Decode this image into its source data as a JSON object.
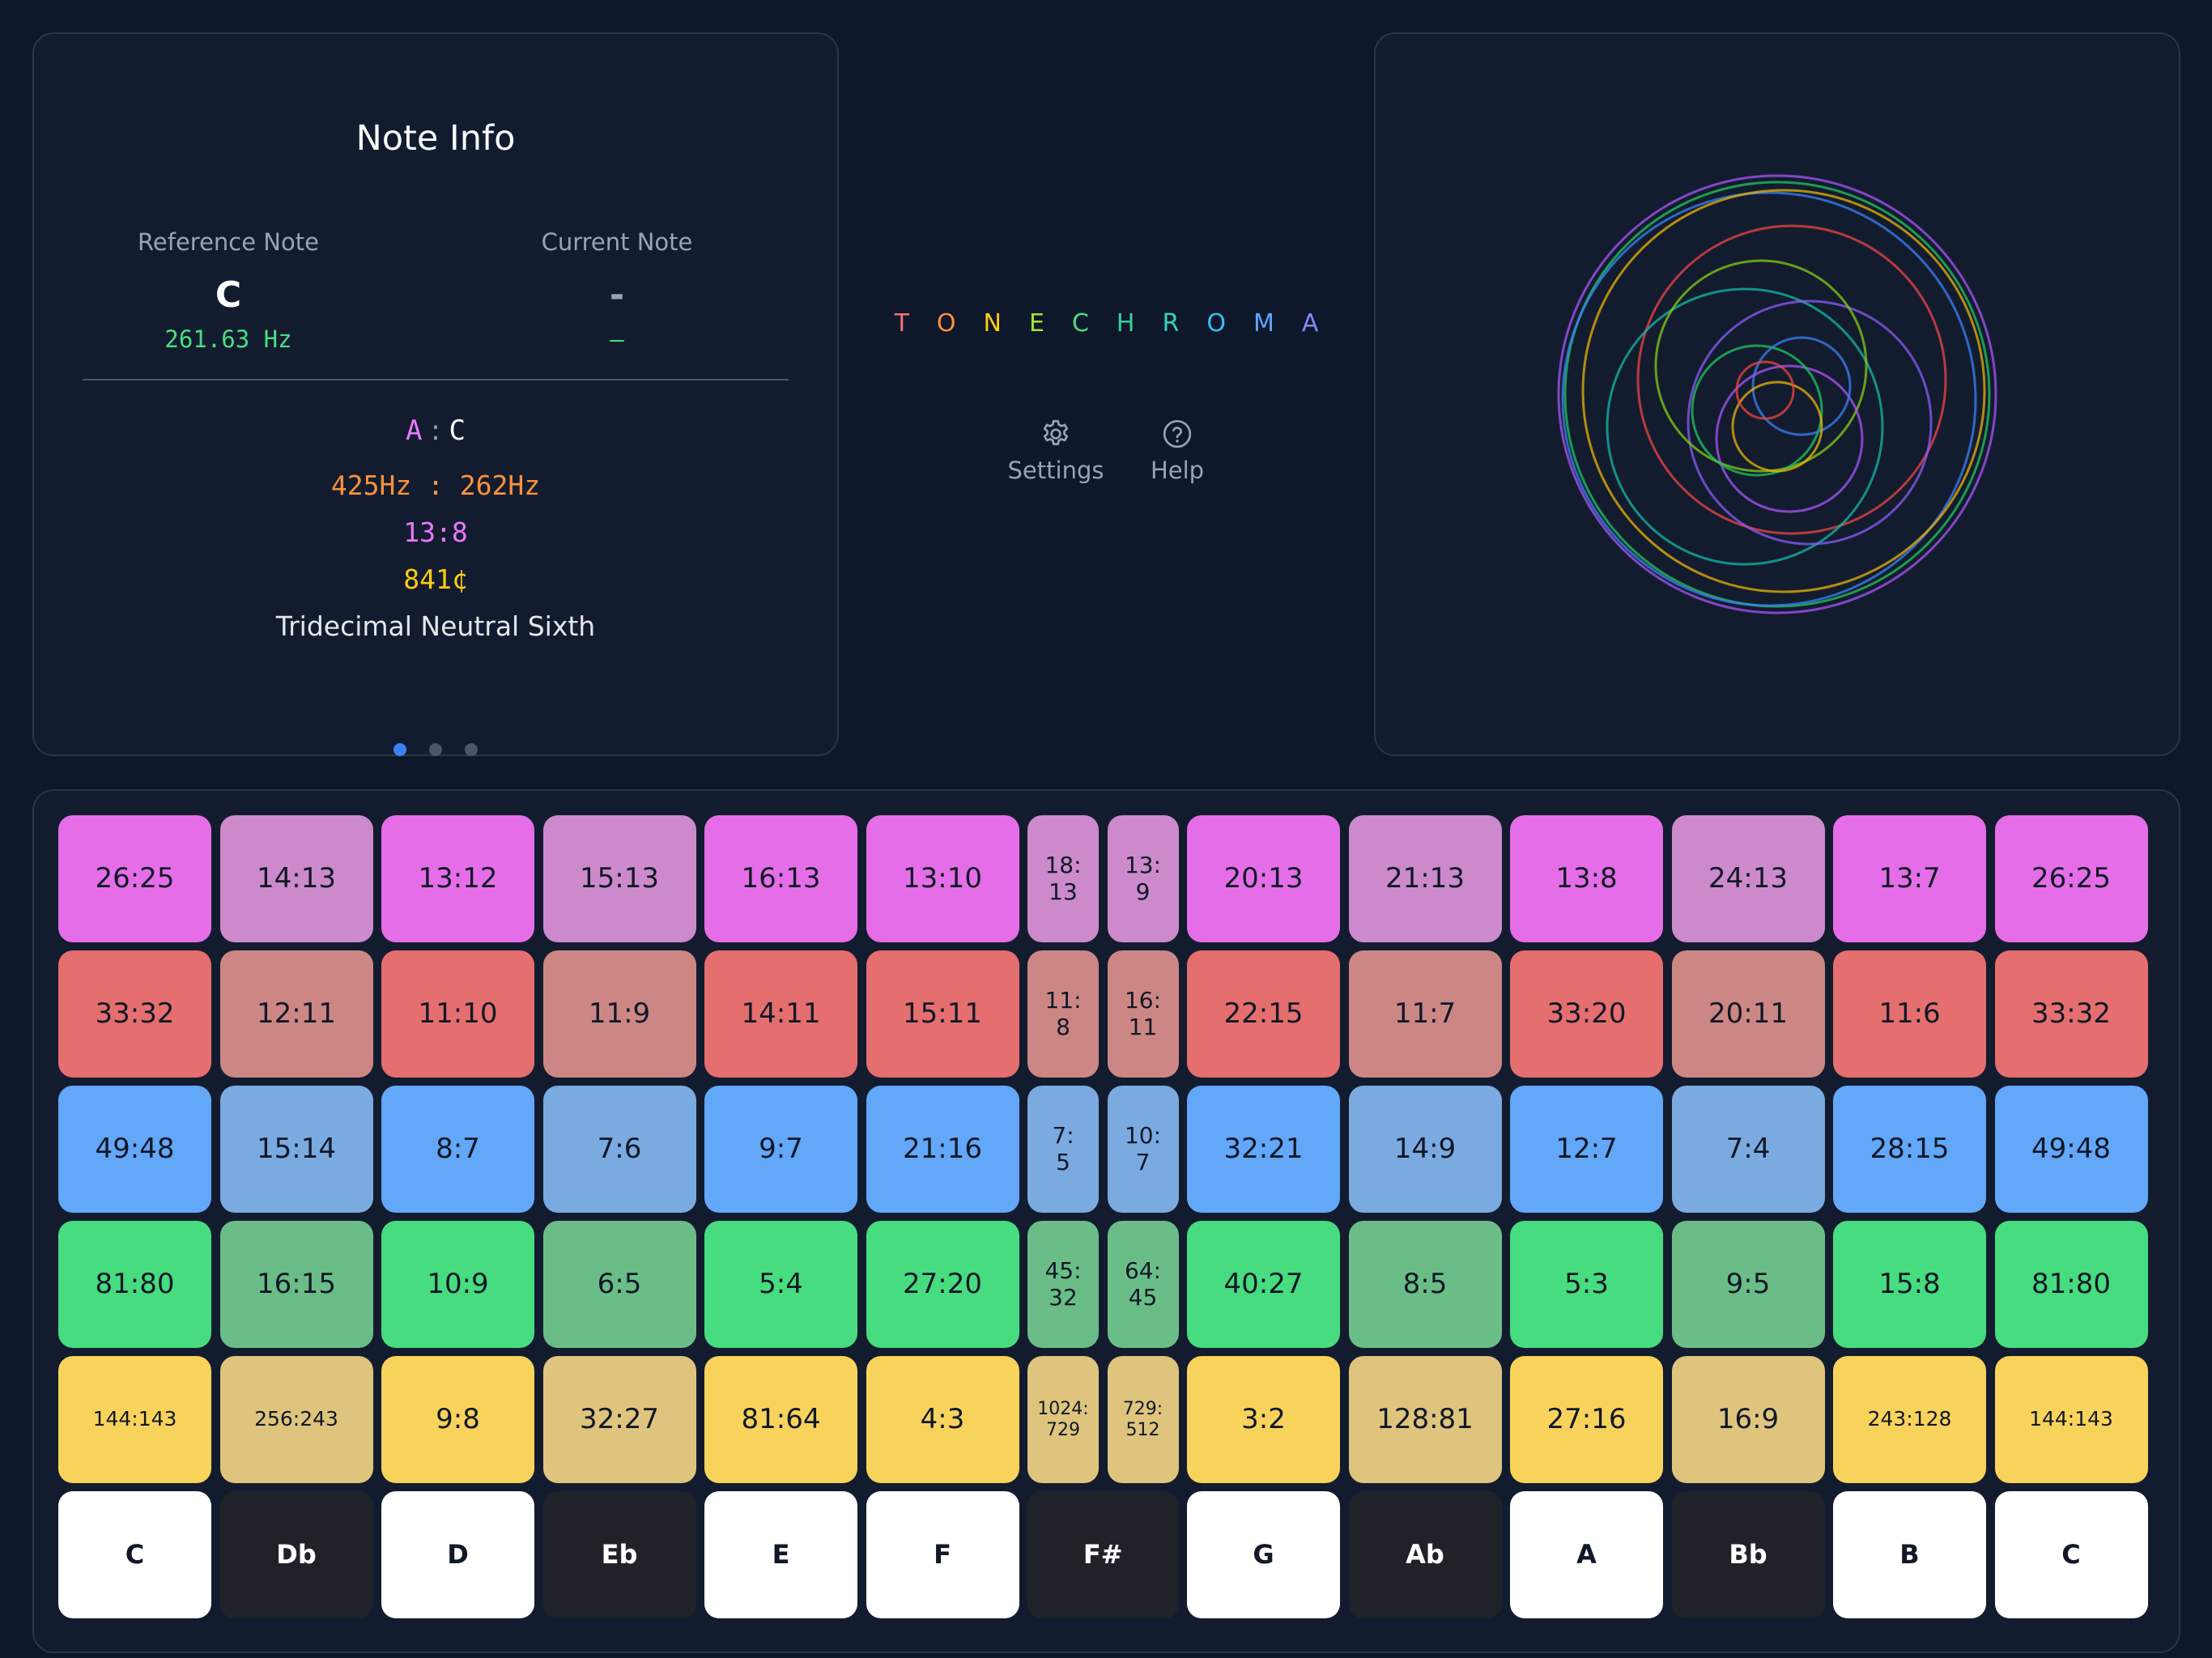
{
  "note_info": {
    "title": "Note Info",
    "reference": {
      "label": "Reference Note",
      "note": "C",
      "hz": "261.63 Hz"
    },
    "current": {
      "label": "Current Note",
      "note": "-",
      "hz": "–"
    },
    "interval": {
      "note_a": "A",
      "separator": ":",
      "note_b": "C",
      "hz": "425Hz : 262Hz",
      "ratio": "13:8",
      "cents": "841¢",
      "name": "Tridecimal Neutral Sixth"
    },
    "pages": 3,
    "active_page": 1
  },
  "app": {
    "logo_letters": [
      "T",
      "O",
      "N",
      "E",
      "C",
      "H",
      "R",
      "O",
      "M",
      "A"
    ],
    "logo_colors": [
      "#f87171",
      "#fb923c",
      "#facc15",
      "#a3e635",
      "#4ade80",
      "#34d399",
      "#2dd4bf",
      "#38bdf8",
      "#60a5fa",
      "#818cf8"
    ],
    "settings_label": "Settings",
    "help_label": "Help",
    "settings_icon": "gear-icon",
    "help_icon": "question-circle-icon"
  },
  "visualizer": {
    "circle_colors": [
      "#a855f7",
      "#22c55e",
      "#3b82f6",
      "#eab308",
      "#ef4444",
      "#14b8a6",
      "#8b5cf6",
      "#84cc16"
    ]
  },
  "grid": {
    "row_colors": [
      {
        "strong": "#e56ee8",
        "muted": "#cc8acc"
      },
      {
        "strong": "#e56e6e",
        "muted": "#cc8785"
      },
      {
        "strong": "#62a7f8",
        "muted": "#7aaae0"
      },
      {
        "strong": "#47dc7f",
        "muted": "#6bbd88"
      },
      {
        "strong": "#f8d35c",
        "muted": "#dfc47d"
      }
    ],
    "rows": [
      [
        "26:25",
        "14:13",
        "13:12",
        "15:13",
        "16:13",
        "13:10",
        "18:\n13",
        "13:\n9",
        "20:13",
        "21:13",
        "13:8",
        "24:13",
        "13:7",
        "26:25"
      ],
      [
        "33:32",
        "12:11",
        "11:10",
        "11:9",
        "14:11",
        "15:11",
        "11:\n8",
        "16:\n11",
        "22:15",
        "11:7",
        "33:20",
        "20:11",
        "11:6",
        "33:32"
      ],
      [
        "49:48",
        "15:14",
        "8:7",
        "7:6",
        "9:7",
        "21:16",
        "7:\n5",
        "10:\n7",
        "32:21",
        "14:9",
        "12:7",
        "7:4",
        "28:15",
        "49:48"
      ],
      [
        "81:80",
        "16:15",
        "10:9",
        "6:5",
        "5:4",
        "27:20",
        "45:\n32",
        "64:\n45",
        "40:27",
        "8:5",
        "5:3",
        "9:5",
        "15:8",
        "81:80"
      ],
      [
        "144:143",
        "256:243",
        "9:8",
        "32:27",
        "81:64",
        "4:3",
        "1024:\n729",
        "729:\n512",
        "3:2",
        "128:81",
        "27:16",
        "16:9",
        "243:128",
        "144:143"
      ]
    ],
    "muted_columns": [
      1,
      3,
      6,
      7,
      9,
      11
    ],
    "keys": [
      {
        "label": "C",
        "color": "white"
      },
      {
        "label": "Db",
        "color": "black"
      },
      {
        "label": "D",
        "color": "white"
      },
      {
        "label": "Eb",
        "color": "black"
      },
      {
        "label": "E",
        "color": "white"
      },
      {
        "label": "F",
        "color": "white"
      },
      {
        "label": "F#",
        "color": "black"
      },
      {
        "label": "G",
        "color": "white"
      },
      {
        "label": "Ab",
        "color": "black"
      },
      {
        "label": "A",
        "color": "white"
      },
      {
        "label": "Bb",
        "color": "black"
      },
      {
        "label": "B",
        "color": "white"
      },
      {
        "label": "C",
        "color": "white"
      }
    ]
  }
}
